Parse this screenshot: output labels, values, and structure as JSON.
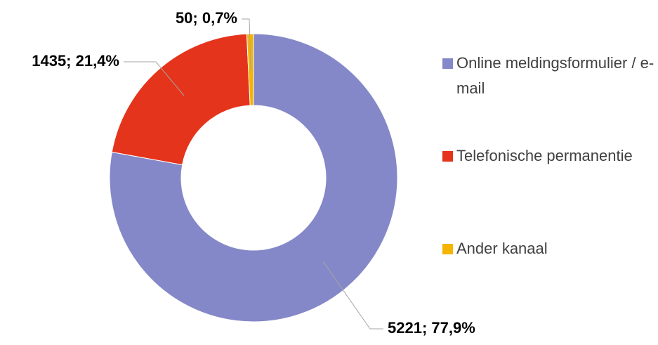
{
  "chart_data": {
    "type": "donut",
    "categories": [
      "Online meldingsformulier / e-mail",
      "Telefonische permanentie",
      "Ander kanaal"
    ],
    "values": [
      5221,
      1435,
      50
    ],
    "value_labels": [
      "5221; 77,9%",
      "1435; 21,4%",
      "50; 0,7%"
    ],
    "colors": [
      "#8488c8",
      "#e5341c",
      "#f5b400"
    ],
    "legend": "right"
  }
}
